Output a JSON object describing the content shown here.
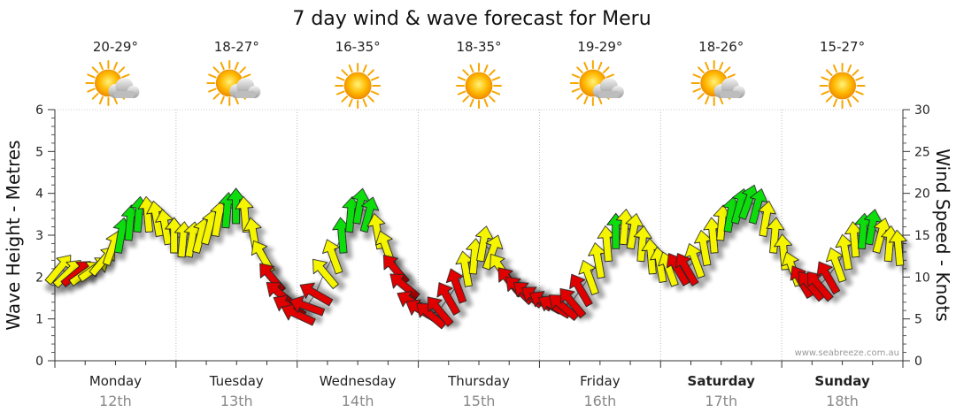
{
  "chart_data": {
    "type": "line",
    "title": "7 day wind & wave forecast for Meru",
    "ylabel_left": "Wave Height - Metres",
    "ylabel_right": "Wind Speed - Knots",
    "ylim_left": [
      0,
      6
    ],
    "ylim_right": [
      0,
      30
    ],
    "yticks_left": [
      "0",
      "1",
      "2",
      "3",
      "4",
      "5",
      "6"
    ],
    "yticks_right": [
      "0",
      "5",
      "10",
      "15",
      "20",
      "25",
      "30"
    ],
    "credit": "www.seabreeze.com.au",
    "days": [
      {
        "name": "Monday",
        "date": "12th",
        "temp": "20-29°",
        "icon": "partly-cloudy-icon",
        "bold": false
      },
      {
        "name": "Tuesday",
        "date": "13th",
        "temp": "18-27°",
        "icon": "partly-cloudy-icon",
        "bold": false
      },
      {
        "name": "Wednesday",
        "date": "14th",
        "temp": "16-35°",
        "icon": "sunny-icon",
        "bold": false
      },
      {
        "name": "Thursday",
        "date": "15th",
        "temp": "18-35°",
        "icon": "sunny-icon",
        "bold": false
      },
      {
        "name": "Friday",
        "date": "16th",
        "temp": "19-29°",
        "icon": "partly-cloudy-icon",
        "bold": false
      },
      {
        "name": "Saturday",
        "date": "17th",
        "temp": "18-26°",
        "icon": "partly-cloudy-icon",
        "bold": true
      },
      {
        "name": "Sunday",
        "date": "18th",
        "temp": "15-27°",
        "icon": "sunny-icon",
        "bold": true
      }
    ],
    "colors": {
      "low": "#e00000",
      "mid": "#f5f500",
      "high": "#11dd11"
    },
    "wind_knots": [
      13,
      12,
      10,
      12,
      13,
      14,
      17,
      18,
      18,
      18,
      16,
      15,
      14,
      14,
      14,
      13,
      16,
      15,
      16,
      18,
      19,
      17,
      14,
      12,
      10,
      8,
      7,
      6,
      7,
      9,
      12,
      14,
      18,
      19,
      19,
      18,
      16,
      14,
      11,
      9,
      7,
      6,
      5,
      6,
      8,
      10,
      13,
      15,
      16,
      14,
      13,
      11,
      10,
      9,
      9,
      8,
      7,
      6,
      8,
      10,
      12,
      15,
      17,
      18,
      17,
      16,
      14,
      13,
      12,
      12,
      11,
      11,
      12,
      13,
      15,
      17,
      19,
      20,
      20,
      19,
      17,
      15,
      14,
      12,
      10,
      9,
      8,
      10,
      12,
      14,
      16,
      18,
      19,
      17,
      16,
      15
    ],
    "wind_dir_deg": [
      40,
      45,
      50,
      55,
      55,
      40,
      20,
      10,
      5,
      5,
      355,
      350,
      350,
      0,
      5,
      10,
      15,
      15,
      10,
      5,
      0,
      355,
      350,
      330,
      320,
      310,
      300,
      295,
      290,
      300,
      320,
      340,
      355,
      5,
      10,
      15,
      350,
      340,
      320,
      310,
      300,
      300,
      310,
      320,
      330,
      340,
      350,
      5,
      10,
      20,
      325,
      320,
      315,
      310,
      305,
      300,
      300,
      310,
      320,
      330,
      340,
      350,
      355,
      0,
      5,
      10,
      5,
      355,
      350,
      340,
      330,
      330,
      340,
      350,
      355,
      5,
      10,
      15,
      20,
      15,
      10,
      5,
      355,
      340,
      330,
      320,
      320,
      330,
      340,
      350,
      355,
      5,
      10,
      15,
      5,
      355
    ],
    "wave_m": [
      2.2,
      2.1,
      2.1,
      2.1,
      2.2,
      2.4,
      2.7,
      3.0,
      3.3,
      3.5,
      3.5,
      3.4,
      3.2,
      3.0,
      2.9,
      2.9,
      3.0,
      3.2,
      3.4,
      3.6,
      3.7,
      3.5,
      3.0,
      2.5,
      2.0,
      1.6,
      1.3,
      1.1,
      1.3,
      1.6,
      2.1,
      2.5,
      3.0,
      3.5,
      3.7,
      3.5,
      3.1,
      2.7,
      2.2,
      1.8,
      1.4,
      1.2,
      1.1,
      1.2,
      1.5,
      1.8,
      2.2,
      2.5,
      2.8,
      2.6,
      2.2,
      1.9,
      1.7,
      1.6,
      1.5,
      1.4,
      1.3,
      1.3,
      1.4,
      1.7,
      2.0,
      2.4,
      2.8,
      3.1,
      3.2,
      3.1,
      2.8,
      2.5,
      2.3,
      2.2,
      2.2,
      2.2,
      2.4,
      2.7,
      3.0,
      3.3,
      3.5,
      3.7,
      3.8,
      3.7,
      3.4,
      3.0,
      2.6,
      2.2,
      1.9,
      1.8,
      1.8,
      2.0,
      2.3,
      2.6,
      2.9,
      3.1,
      3.2,
      3.0,
      2.8,
      2.7
    ]
  }
}
